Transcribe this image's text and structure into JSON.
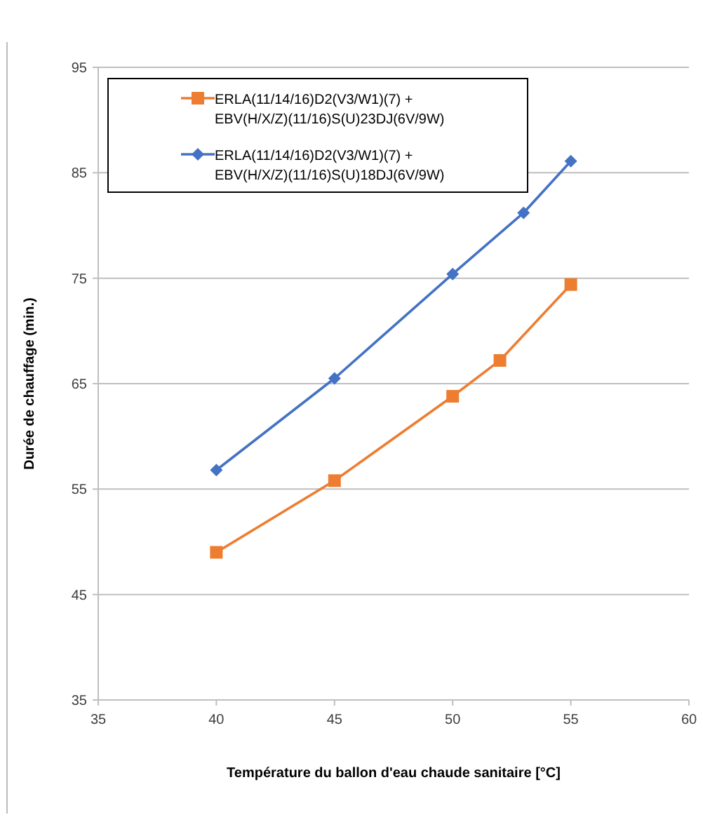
{
  "chart_data": {
    "type": "line",
    "xlabel": "Température du ballon d'eau chaude sanitaire [°C]",
    "ylabel": "Durée de chauffage (min.)",
    "xlim": [
      35,
      60
    ],
    "xticks": [
      35,
      40,
      45,
      50,
      55,
      60
    ],
    "ylim": [
      35,
      95
    ],
    "yticks": [
      35,
      45,
      55,
      65,
      75,
      85,
      95
    ],
    "grid": "y",
    "legend": "top left",
    "series": [
      {
        "name": "ERLA(11/14/16)D2(V3/W1)(7) + EBV(H/X/Z)(11/16)S(U)23DJ(6V/9W)",
        "color": "#ed7d31",
        "marker": "square",
        "x": [
          40,
          45,
          50,
          52,
          55
        ],
        "values": [
          49,
          55.8,
          63.8,
          67.2,
          74.4
        ]
      },
      {
        "name": "ERLA(11/14/16)D2(V3/W1)(7) + EBV(H/X/Z)(11/16)S(U)18DJ(6V/9W)",
        "color": "#4472c4",
        "marker": "diamond",
        "x": [
          40,
          45,
          50,
          53,
          55
        ],
        "values": [
          56.8,
          65.5,
          75.4,
          81.2,
          86.1
        ]
      }
    ]
  }
}
